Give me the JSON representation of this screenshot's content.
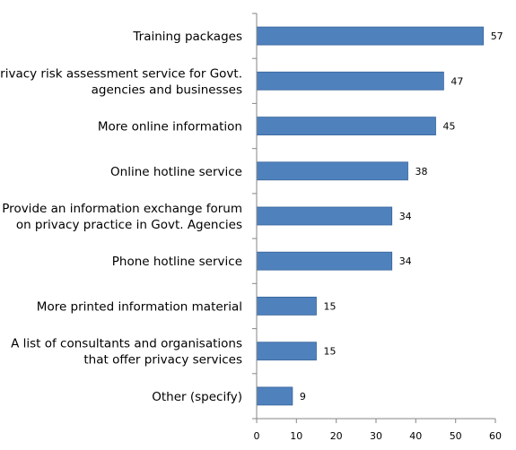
{
  "chart_data": {
    "type": "bar",
    "orientation": "horizontal",
    "categories": [
      [
        "Training packages"
      ],
      [
        "Privacy risk assessment service for Govt.",
        "agencies and businesses"
      ],
      [
        "More online information"
      ],
      [
        "Online hotline service"
      ],
      [
        "Provide an information exchange forum",
        "on privacy practice in Govt. Agencies"
      ],
      [
        "Phone hotline service"
      ],
      [
        "More printed information material"
      ],
      [
        "A list of consultants and organisations",
        "that offer privacy services"
      ],
      [
        "Other (specify)"
      ]
    ],
    "values": [
      57,
      47,
      45,
      38,
      34,
      34,
      15,
      15,
      9
    ],
    "xlim": [
      0,
      60
    ],
    "xticks": [
      0,
      10,
      20,
      30,
      40,
      50,
      60
    ],
    "grid": false,
    "legend": "none",
    "bar_color": "#4F81BD",
    "bar_border_color": "#3A679C",
    "axis_color": "#868686"
  }
}
